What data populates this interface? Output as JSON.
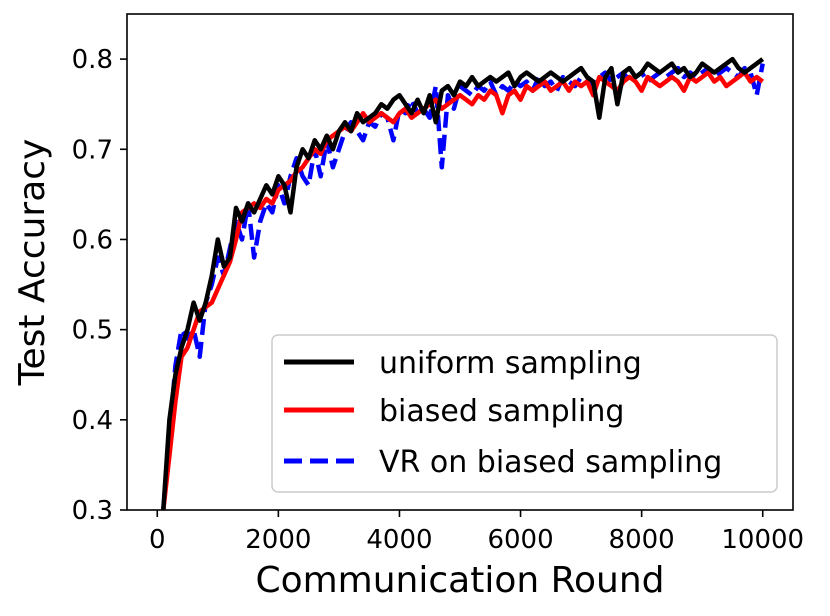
{
  "chart_data": {
    "type": "line",
    "title": "",
    "xlabel": "Communication Round",
    "ylabel": "Test Accuracy",
    "xlim": [
      -500,
      10500
    ],
    "ylim": [
      0.3,
      0.85
    ],
    "xticks": [
      0,
      2000,
      4000,
      6000,
      8000,
      10000
    ],
    "xtick_labels": [
      "0",
      "2000",
      "4000",
      "6000",
      "8000",
      "10000"
    ],
    "yticks": [
      0.3,
      0.4,
      0.5,
      0.6,
      0.7,
      0.8
    ],
    "ytick_labels": [
      "0.3",
      "0.4",
      "0.5",
      "0.6",
      "0.7",
      "0.8"
    ],
    "grid": false,
    "legend_position": "lower-right",
    "series": [
      {
        "name": "uniform sampling",
        "color": "#000000",
        "style": "solid",
        "x": [
          100,
          200,
          300,
          400,
          500,
          600,
          700,
          800,
          900,
          1000,
          1100,
          1200,
          1300,
          1400,
          1500,
          1600,
          1700,
          1800,
          1900,
          2000,
          2100,
          2200,
          2300,
          2400,
          2500,
          2600,
          2700,
          2800,
          2900,
          3000,
          3100,
          3200,
          3300,
          3400,
          3500,
          3600,
          3700,
          3800,
          3900,
          4000,
          4100,
          4200,
          4300,
          4400,
          4500,
          4600,
          4700,
          4800,
          4900,
          5000,
          5100,
          5200,
          5300,
          5400,
          5500,
          5600,
          5700,
          5800,
          5900,
          6000,
          6100,
          6200,
          6300,
          6400,
          6500,
          6600,
          6700,
          6800,
          6900,
          7000,
          7100,
          7200,
          7300,
          7400,
          7500,
          7600,
          7700,
          7800,
          7900,
          8000,
          8100,
          8200,
          8300,
          8400,
          8500,
          8600,
          8700,
          8800,
          8900,
          9000,
          9100,
          9200,
          9300,
          9400,
          9500,
          9600,
          9700,
          9800,
          9900,
          10000
        ],
        "y": [
          0.3,
          0.4,
          0.45,
          0.48,
          0.5,
          0.53,
          0.51,
          0.53,
          0.56,
          0.6,
          0.57,
          0.58,
          0.635,
          0.62,
          0.64,
          0.63,
          0.645,
          0.66,
          0.65,
          0.67,
          0.66,
          0.63,
          0.68,
          0.7,
          0.69,
          0.71,
          0.7,
          0.715,
          0.7,
          0.72,
          0.73,
          0.72,
          0.74,
          0.73,
          0.735,
          0.74,
          0.75,
          0.745,
          0.755,
          0.76,
          0.75,
          0.74,
          0.755,
          0.74,
          0.76,
          0.73,
          0.765,
          0.77,
          0.76,
          0.775,
          0.77,
          0.78,
          0.77,
          0.775,
          0.78,
          0.775,
          0.78,
          0.785,
          0.77,
          0.78,
          0.785,
          0.78,
          0.775,
          0.78,
          0.785,
          0.78,
          0.775,
          0.78,
          0.785,
          0.79,
          0.78,
          0.775,
          0.735,
          0.78,
          0.79,
          0.75,
          0.785,
          0.79,
          0.78,
          0.785,
          0.795,
          0.79,
          0.785,
          0.79,
          0.795,
          0.785,
          0.79,
          0.78,
          0.785,
          0.795,
          0.79,
          0.785,
          0.79,
          0.795,
          0.8,
          0.79,
          0.785,
          0.79,
          0.795,
          0.8
        ]
      },
      {
        "name": "biased sampling",
        "color": "#ff0000",
        "style": "solid",
        "x": [
          100,
          200,
          300,
          400,
          500,
          600,
          700,
          800,
          900,
          1000,
          1100,
          1200,
          1300,
          1400,
          1500,
          1600,
          1700,
          1800,
          1900,
          2000,
          2100,
          2200,
          2300,
          2400,
          2500,
          2600,
          2700,
          2800,
          2900,
          3000,
          3100,
          3200,
          3300,
          3400,
          3500,
          3600,
          3700,
          3800,
          3900,
          4000,
          4100,
          4200,
          4300,
          4400,
          4500,
          4600,
          4700,
          4800,
          4900,
          5000,
          5100,
          5200,
          5300,
          5400,
          5500,
          5600,
          5700,
          5800,
          5900,
          6000,
          6100,
          6200,
          6300,
          6400,
          6500,
          6600,
          6700,
          6800,
          6900,
          7000,
          7100,
          7200,
          7300,
          7400,
          7500,
          7600,
          7700,
          7800,
          7900,
          8000,
          8100,
          8200,
          8300,
          8400,
          8500,
          8600,
          8700,
          8800,
          8900,
          9000,
          9100,
          9200,
          9300,
          9400,
          9500,
          9600,
          9700,
          9800,
          9900,
          10000
        ],
        "y": [
          0.3,
          0.36,
          0.42,
          0.47,
          0.48,
          0.5,
          0.52,
          0.525,
          0.53,
          0.545,
          0.56,
          0.575,
          0.6,
          0.63,
          0.635,
          0.64,
          0.635,
          0.645,
          0.64,
          0.655,
          0.66,
          0.665,
          0.675,
          0.68,
          0.69,
          0.7,
          0.695,
          0.71,
          0.715,
          0.72,
          0.725,
          0.72,
          0.73,
          0.74,
          0.73,
          0.735,
          0.74,
          0.735,
          0.73,
          0.74,
          0.745,
          0.735,
          0.74,
          0.745,
          0.75,
          0.755,
          0.745,
          0.75,
          0.755,
          0.76,
          0.755,
          0.75,
          0.76,
          0.755,
          0.765,
          0.76,
          0.74,
          0.76,
          0.765,
          0.755,
          0.77,
          0.765,
          0.77,
          0.775,
          0.765,
          0.77,
          0.775,
          0.765,
          0.775,
          0.77,
          0.775,
          0.76,
          0.78,
          0.775,
          0.77,
          0.765,
          0.775,
          0.78,
          0.775,
          0.765,
          0.78,
          0.775,
          0.77,
          0.775,
          0.78,
          0.775,
          0.765,
          0.78,
          0.775,
          0.78,
          0.785,
          0.775,
          0.78,
          0.77,
          0.775,
          0.78,
          0.785,
          0.775,
          0.78,
          0.775
        ]
      },
      {
        "name": "VR on biased sampling",
        "color": "#0000ff",
        "style": "dashed",
        "x": [
          100,
          200,
          300,
          400,
          500,
          600,
          700,
          800,
          900,
          1000,
          1100,
          1200,
          1300,
          1400,
          1500,
          1600,
          1700,
          1800,
          1900,
          2000,
          2100,
          2200,
          2300,
          2400,
          2500,
          2600,
          2700,
          2800,
          2900,
          3000,
          3100,
          3200,
          3300,
          3400,
          3500,
          3600,
          3700,
          3800,
          3900,
          4000,
          4100,
          4200,
          4300,
          4400,
          4500,
          4600,
          4700,
          4800,
          4900,
          5000,
          5100,
          5200,
          5300,
          5400,
          5500,
          5600,
          5700,
          5800,
          5900,
          6000,
          6100,
          6200,
          6300,
          6400,
          6500,
          6600,
          6700,
          6800,
          6900,
          7000,
          7100,
          7200,
          7300,
          7400,
          7500,
          7600,
          7700,
          7800,
          7900,
          8000,
          8100,
          8200,
          8300,
          8400,
          8500,
          8600,
          8700,
          8800,
          8900,
          9000,
          9100,
          9200,
          9300,
          9400,
          9500,
          9600,
          9700,
          9800,
          9900,
          10000
        ],
        "y": [
          0.3,
          0.38,
          0.46,
          0.5,
          0.49,
          0.5,
          0.47,
          0.53,
          0.55,
          0.58,
          0.56,
          0.59,
          0.62,
          0.6,
          0.64,
          0.58,
          0.62,
          0.64,
          0.63,
          0.66,
          0.64,
          0.67,
          0.69,
          0.67,
          0.66,
          0.7,
          0.67,
          0.71,
          0.68,
          0.7,
          0.72,
          0.73,
          0.72,
          0.71,
          0.73,
          0.725,
          0.74,
          0.735,
          0.71,
          0.745,
          0.74,
          0.755,
          0.74,
          0.745,
          0.735,
          0.77,
          0.68,
          0.76,
          0.745,
          0.77,
          0.765,
          0.76,
          0.77,
          0.765,
          0.775,
          0.76,
          0.77,
          0.765,
          0.775,
          0.77,
          0.775,
          0.765,
          0.78,
          0.77,
          0.775,
          0.765,
          0.78,
          0.775,
          0.77,
          0.78,
          0.775,
          0.77,
          0.78,
          0.785,
          0.775,
          0.78,
          0.785,
          0.775,
          0.78,
          0.785,
          0.775,
          0.78,
          0.785,
          0.78,
          0.785,
          0.79,
          0.78,
          0.785,
          0.78,
          0.785,
          0.79,
          0.78,
          0.785,
          0.79,
          0.785,
          0.78,
          0.79,
          0.785,
          0.76,
          0.795
        ]
      }
    ]
  }
}
